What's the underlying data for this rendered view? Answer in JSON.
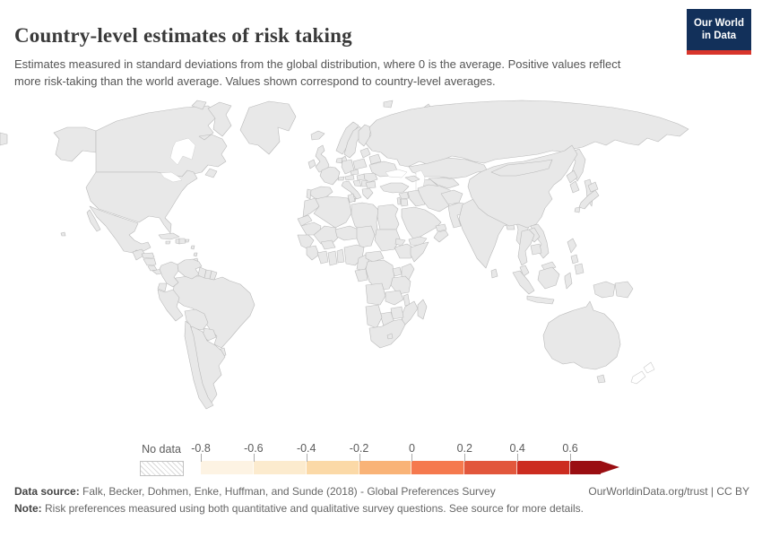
{
  "header": {
    "title": "Country-level estimates of risk taking",
    "subtitle": "Estimates measured in standard deviations from the global distribution, where 0 is the average. Positive values reflect more risk-taking than the world average. Values shown correspond to country-level averages.",
    "logo": {
      "line1": "Our World",
      "line2": "in Data",
      "bg_color": "#12305a",
      "accent_color": "#d8352b"
    }
  },
  "legend": {
    "no_data_label": "No data",
    "ticks": [
      "-0.8",
      "-0.6",
      "-0.4",
      "-0.2",
      "0",
      "0.2",
      "0.4",
      "0.6"
    ],
    "segment_colors": [
      "#fdf3e3",
      "#fcebce",
      "#fbd9a7",
      "#f9b377",
      "#f5794e",
      "#e2573c",
      "#cc2c20",
      "#9a0e12"
    ]
  },
  "footer": {
    "source_label": "Data source:",
    "source_text": " Falk, Becker, Dohmen, Enke, Huffman, and Sunde (2018) - Global Preferences Survey",
    "link_text": "OurWorldinData.org/trust | CC BY",
    "note_label": "Note:",
    "note_text": " Risk preferences measured using both quantitative and qualitative survey questions. See source for more details."
  },
  "chart_data": {
    "type": "choropleth",
    "title": "Country-level estimates of risk taking",
    "metric": "Risk taking (standard deviations from global average, 0 = world average)",
    "scale": {
      "min": -0.8,
      "max": 0.6,
      "open_ended_high": true,
      "bin_width": 0.2
    },
    "legend_bins": [
      {
        "range": "-0.8 to -0.6",
        "color": "#fdf3e3"
      },
      {
        "range": "-0.6 to -0.4",
        "color": "#fcebce"
      },
      {
        "range": "-0.4 to -0.2",
        "color": "#fbd9a7"
      },
      {
        "range": "-0.2 to 0",
        "color": "#f9b377"
      },
      {
        "range": "0 to 0.2",
        "color": "#f5794e"
      },
      {
        "range": "0.2 to 0.4",
        "color": "#e2573c"
      },
      {
        "range": "0.4 to 0.6",
        "color": "#cc2c20"
      },
      {
        "range": "more than 0.6",
        "color": "#9a0e12"
      }
    ],
    "countries": {
      "United States": "#f5794e",
      "Canada": "#f5794e",
      "Mexico": "#f9b377",
      "Guatemala": "#fcebce",
      "Honduras": "#f9b377",
      "Nicaragua": "#f9b377",
      "Costa Rica": "#e2573c",
      "Panama": "#f9b377",
      "Haiti": "#e2573c",
      "Colombia": "#f9b377",
      "Venezuela": "#e2573c",
      "Suriname": "#f5794e",
      "Ecuador": "#f5794e",
      "Peru": "#f5794e",
      "Brazil": "#fbd9a7",
      "Bolivia": "#f5794e",
      "Chile": "#f5794e",
      "Argentina": "#f5794e",
      "United Kingdom": "#f5794e",
      "Ireland": "#f5794e",
      "Portugal": "#fcebce",
      "Spain": "#f9b377",
      "France": "#f9b377",
      "Netherlands": "#f9b377",
      "Germany": "#f9bd85",
      "Switzerland": "#f9b377",
      "Austria": "#fbd9a7",
      "Czechia": "#fbd9a7",
      "Poland": "#f9b377",
      "Sweden": "#f5794e",
      "Finland": "#f9b377",
      "Italy": "#f59767",
      "Hungary": "#fdf3e3",
      "Bosnia and Herzegovina": "#e2573c",
      "Serbia": "#f9b377",
      "Romania": "#f9b377",
      "Bulgaria": "#fbd9a7",
      "Greece": "#f6a472",
      "Ukraine": "#fbd9a7",
      "Russia": "#fbd9a7",
      "Turkey": "#f28760",
      "Georgia": "#e2573c",
      "Kazakhstan": "#e2573c",
      "Iran": "#e2573c",
      "Iraq": "#e2573c",
      "Saudi Arabia": "#8f0c11",
      "United Arab Emirates": "#8f0c11",
      "Israel": "#e2573c",
      "Jordan": "#f5794e",
      "Egypt": "#fbd9a7",
      "Morocco": "#f5794e",
      "Tunisia": "#f28760",
      "Algeria": "#e2573c",
      "Ghana": "#8f0c11",
      "Togo": "#fcebce",
      "Nigeria": "#e2573c",
      "Cameroon": "#fcebce",
      "Uganda": "#e2573c",
      "Kenya": "#f5794e",
      "Tanzania": "#da4731",
      "Malawi": "#e2573c",
      "Zimbabwe": "#cc2c20",
      "Botswana": "#8f0c11",
      "South Africa": "#8f0c11",
      "Afghanistan": "#f5794e",
      "Pakistan": "#f5794e",
      "India": "#fbd9a7",
      "Bangladesh": "#f9b377",
      "Sri Lanka": "#f5794e",
      "China": "#f79e6e",
      "South Korea": "#f5794e",
      "Japan": "#fbc795",
      "Vietnam": "#f5794e",
      "Thailand": "#f9b377",
      "Cambodia": "#fcebce",
      "Malaysia": "#f9b377",
      "Indonesia": "#fbc491",
      "Philippines": "#d23b2b",
      "Australia": "#f5794e"
    },
    "no_data_countries": [
      "Greenland",
      "Iceland",
      "Norway",
      "Denmark",
      "Baltic states",
      "Belarus",
      "Cuba",
      "Dominican Republic",
      "Jamaica",
      "Caribbean islands",
      "Guyana",
      "French Guiana",
      "Paraguay",
      "Uruguay",
      "Western Sahara",
      "Mauritania",
      "Mali",
      "Niger",
      "Chad",
      "Libya",
      "Sudan",
      "Eritrea",
      "Ethiopia",
      "Somalia",
      "Senegal",
      "Guinea",
      "Ivory Coast",
      "Burkina Faso",
      "Central African Republic",
      "Congo",
      "DR Congo",
      "Zambia",
      "Angola",
      "Namibia",
      "Mozambique",
      "Madagascar",
      "Lesotho",
      "Syria",
      "Yemen",
      "Oman",
      "Uzbekistan",
      "Turkmenistan",
      "Mongolia",
      "Nepal",
      "Myanmar",
      "North Korea",
      "Laos",
      "Papua New Guinea",
      "Arctic islands"
    ],
    "outline_only_countries": [
      "New Zealand"
    ]
  }
}
